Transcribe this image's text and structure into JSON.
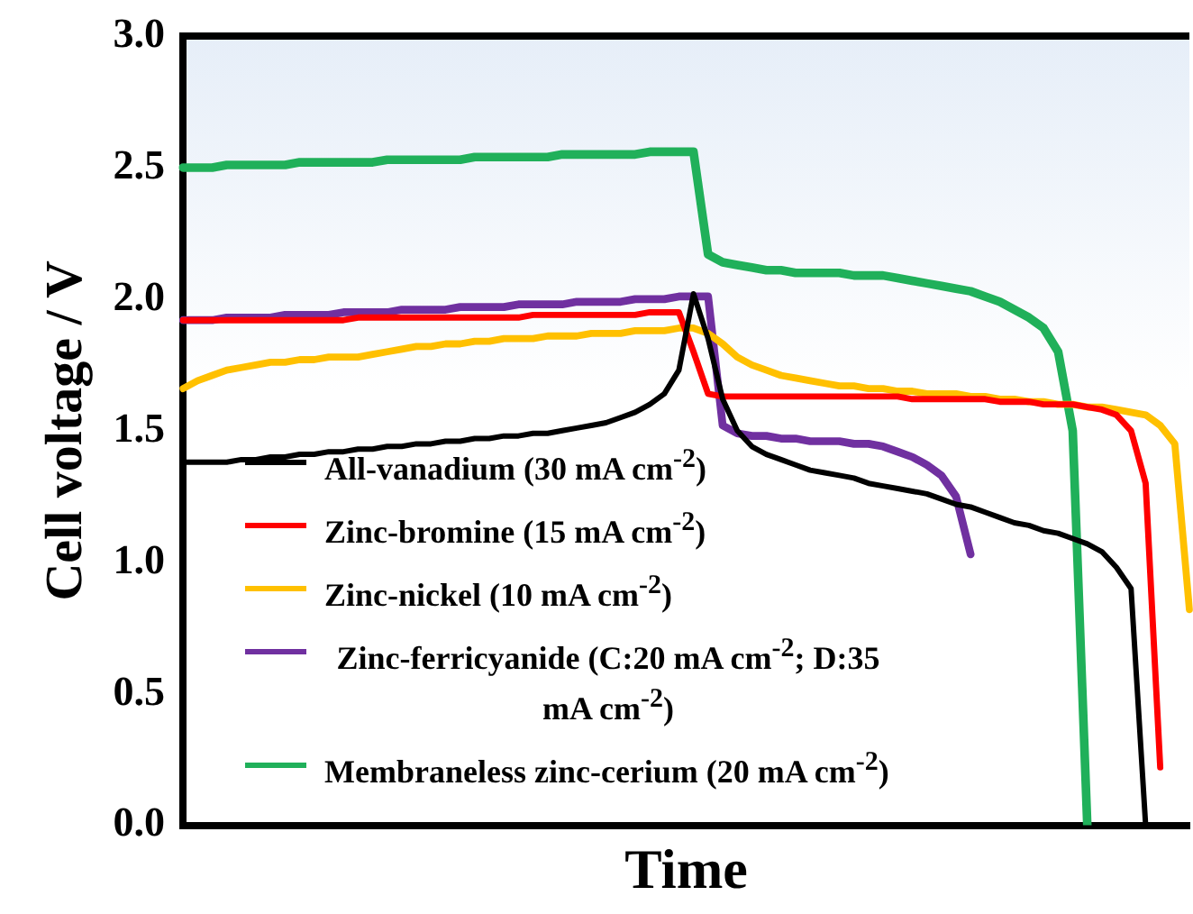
{
  "chart_data": {
    "type": "line",
    "xlabel": "Time",
    "ylabel": "Cell voltage / V",
    "categories": [
      null,
      null,
      null,
      null,
      null,
      null,
      null,
      null,
      null,
      null,
      null,
      null,
      null,
      null,
      null,
      null,
      null,
      null,
      null,
      null,
      null,
      null,
      null,
      null,
      null,
      null,
      null,
      null,
      null,
      null,
      null,
      null,
      null,
      null,
      null,
      null,
      null,
      null,
      null,
      null,
      null,
      null,
      null,
      null,
      null,
      null,
      null,
      null,
      null,
      null,
      null,
      null,
      null,
      null,
      null,
      null,
      null,
      null,
      null,
      null,
      null,
      null,
      null,
      null,
      null,
      null,
      null,
      null,
      null,
      null
    ],
    "series": [
      {
        "name": "All-vanadium (30 mA cm$^{-2}$)",
        "color": "#000000",
        "values": [
          1.38,
          1.38,
          1.38,
          1.38,
          1.39,
          1.39,
          1.4,
          1.4,
          1.41,
          1.41,
          1.42,
          1.42,
          1.43,
          1.43,
          1.44,
          1.44,
          1.45,
          1.45,
          1.46,
          1.46,
          1.47,
          1.47,
          1.48,
          1.48,
          1.49,
          1.49,
          1.5,
          1.51,
          1.52,
          1.53,
          1.55,
          1.57,
          1.6,
          1.64,
          1.73,
          2.02,
          1.85,
          1.62,
          1.5,
          1.44,
          1.41,
          1.39,
          1.37,
          1.35,
          1.34,
          1.33,
          1.32,
          1.3,
          1.29,
          1.28,
          1.27,
          1.26,
          1.24,
          1.22,
          1.21,
          1.19,
          1.17,
          1.15,
          1.14,
          1.12,
          1.11,
          1.09,
          1.07,
          1.04,
          0.98,
          0.9,
          0.0,
          null,
          null,
          null
        ]
      },
      {
        "name": "Zinc-bromine (15 mA cm$^{-2}$)",
        "color": "#ff0000",
        "values": [
          1.92,
          1.92,
          1.92,
          1.92,
          1.92,
          1.92,
          1.92,
          1.92,
          1.92,
          1.92,
          1.92,
          1.92,
          1.93,
          1.93,
          1.93,
          1.93,
          1.93,
          1.93,
          1.93,
          1.93,
          1.93,
          1.93,
          1.93,
          1.93,
          1.94,
          1.94,
          1.94,
          1.94,
          1.94,
          1.94,
          1.94,
          1.94,
          1.95,
          1.95,
          1.95,
          1.8,
          1.64,
          1.63,
          1.63,
          1.63,
          1.63,
          1.63,
          1.63,
          1.63,
          1.63,
          1.63,
          1.63,
          1.63,
          1.63,
          1.63,
          1.62,
          1.62,
          1.62,
          1.62,
          1.62,
          1.62,
          1.61,
          1.61,
          1.61,
          1.6,
          1.6,
          1.6,
          1.59,
          1.58,
          1.56,
          1.5,
          1.3,
          0.22,
          null,
          null
        ]
      },
      {
        "name": "Zinc-nickel (10 mA cm$^{-2}$)",
        "color": "#ffc000",
        "values": [
          1.66,
          1.69,
          1.71,
          1.73,
          1.74,
          1.75,
          1.76,
          1.76,
          1.77,
          1.77,
          1.78,
          1.78,
          1.78,
          1.79,
          1.8,
          1.81,
          1.82,
          1.82,
          1.83,
          1.83,
          1.84,
          1.84,
          1.85,
          1.85,
          1.85,
          1.86,
          1.86,
          1.86,
          1.87,
          1.87,
          1.87,
          1.88,
          1.88,
          1.88,
          1.89,
          1.89,
          1.87,
          1.83,
          1.78,
          1.75,
          1.73,
          1.71,
          1.7,
          1.69,
          1.68,
          1.67,
          1.67,
          1.66,
          1.66,
          1.65,
          1.65,
          1.64,
          1.64,
          1.64,
          1.63,
          1.63,
          1.62,
          1.62,
          1.61,
          1.61,
          1.6,
          1.6,
          1.59,
          1.59,
          1.58,
          1.57,
          1.56,
          1.52,
          1.45,
          0.82
        ]
      },
      {
        "name": "Zinc-ferricyanide (C:20 mA cm$^{-2}$; D:35 mA cm$^{-2}$)",
        "color": "#7030a0",
        "values": [
          1.92,
          1.92,
          1.92,
          1.93,
          1.93,
          1.93,
          1.93,
          1.94,
          1.94,
          1.94,
          1.94,
          1.95,
          1.95,
          1.95,
          1.95,
          1.96,
          1.96,
          1.96,
          1.96,
          1.97,
          1.97,
          1.97,
          1.97,
          1.98,
          1.98,
          1.98,
          1.98,
          1.99,
          1.99,
          1.99,
          1.99,
          2.0,
          2.0,
          2.0,
          2.01,
          2.01,
          2.01,
          1.52,
          1.49,
          1.48,
          1.48,
          1.47,
          1.47,
          1.46,
          1.46,
          1.46,
          1.45,
          1.45,
          1.44,
          1.42,
          1.4,
          1.37,
          1.33,
          1.25,
          1.03,
          null,
          null,
          null,
          null,
          null,
          null,
          null,
          null,
          null,
          null,
          null,
          null,
          null,
          null,
          null
        ]
      },
      {
        "name": "Membraneless zinc-cerium (20 mA cm$^{-2}$)",
        "color": "#20b05a",
        "values": [
          2.5,
          2.5,
          2.5,
          2.51,
          2.51,
          2.51,
          2.51,
          2.51,
          2.52,
          2.52,
          2.52,
          2.52,
          2.52,
          2.52,
          2.53,
          2.53,
          2.53,
          2.53,
          2.53,
          2.53,
          2.54,
          2.54,
          2.54,
          2.54,
          2.54,
          2.54,
          2.55,
          2.55,
          2.55,
          2.55,
          2.55,
          2.55,
          2.56,
          2.56,
          2.56,
          2.56,
          2.17,
          2.14,
          2.13,
          2.12,
          2.11,
          2.11,
          2.1,
          2.1,
          2.1,
          2.1,
          2.09,
          2.09,
          2.09,
          2.08,
          2.07,
          2.06,
          2.05,
          2.04,
          2.03,
          2.01,
          1.99,
          1.96,
          1.93,
          1.89,
          1.8,
          1.5,
          0.0,
          null,
          null,
          null,
          null,
          null,
          null,
          null
        ]
      }
    ],
    "ylim": [
      0,
      3
    ],
    "yticks": [
      {
        "value": 0,
        "label": "0.0"
      },
      {
        "value": 0.5,
        "label": "0.5"
      },
      {
        "value": 1,
        "label": "1.0"
      },
      {
        "value": 1.5,
        "label": "1.5"
      },
      {
        "value": 2,
        "label": "2.0"
      },
      {
        "value": 2.5,
        "label": "2.5"
      },
      {
        "value": 3,
        "label": "3.0"
      }
    ],
    "tick_labels": "y",
    "grid": false,
    "legend": "bottom left",
    "marker": "none",
    "line_style": "solid"
  }
}
